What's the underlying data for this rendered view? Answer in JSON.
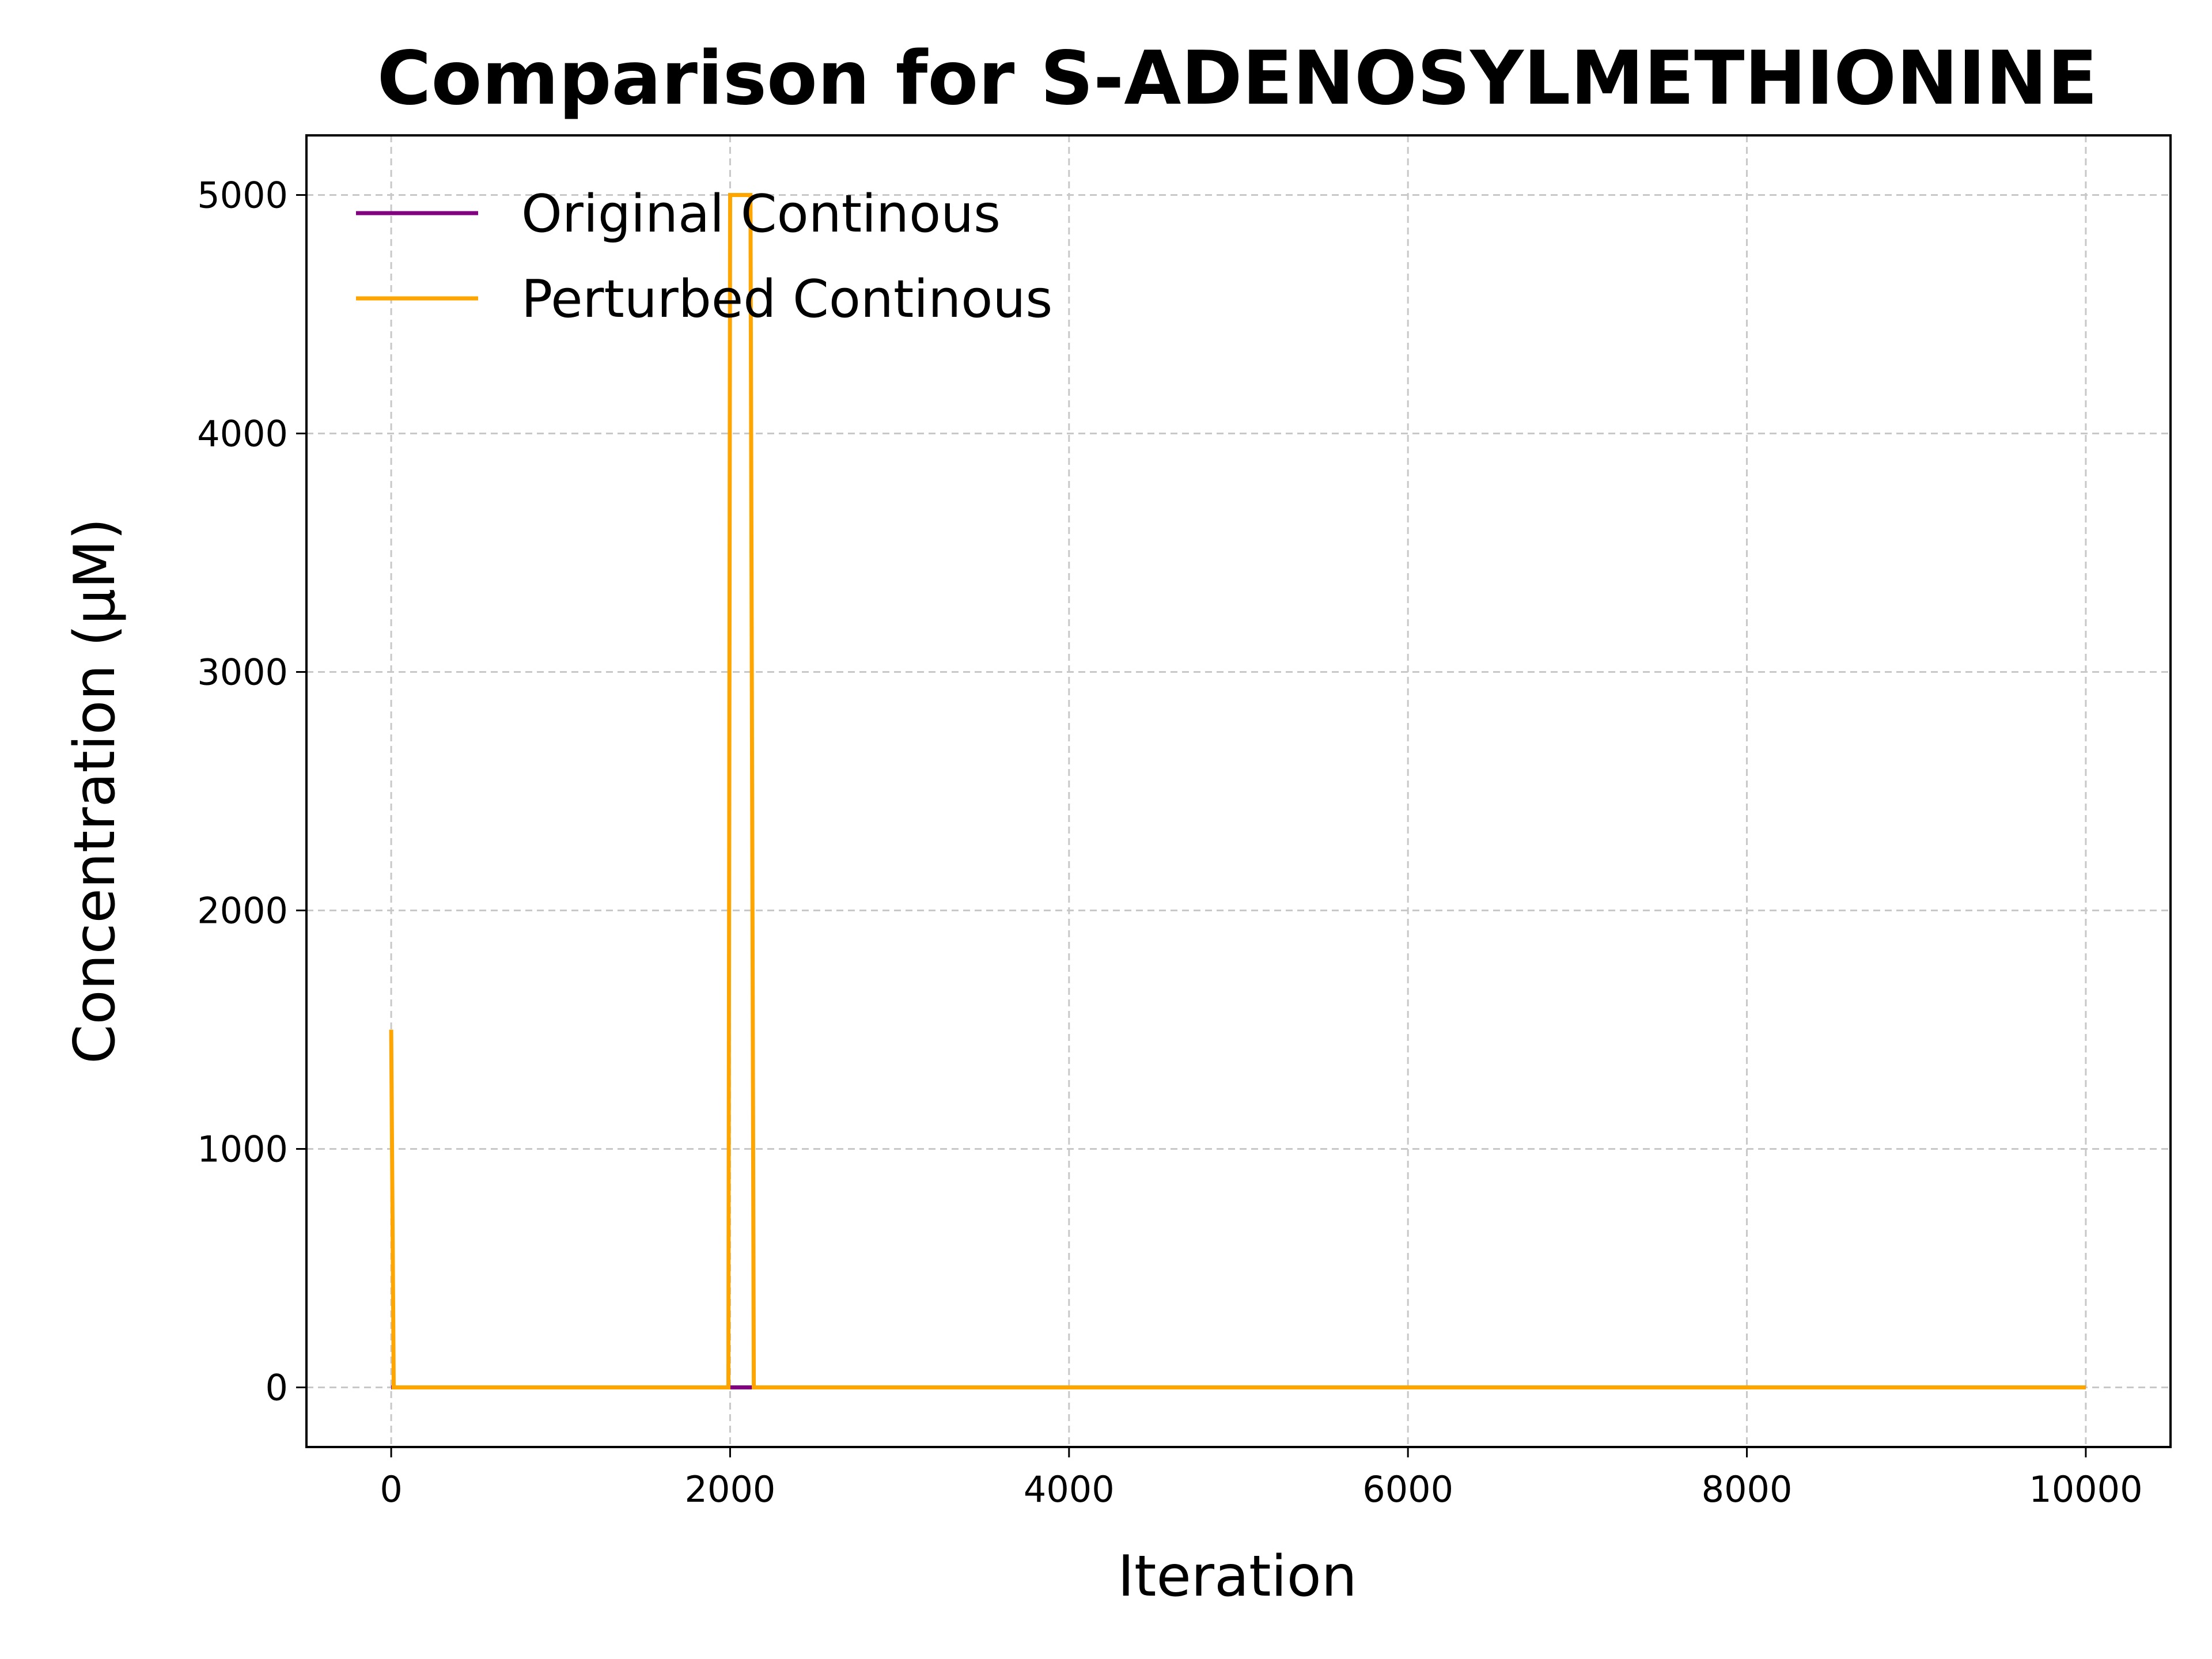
{
  "chart_data": {
    "type": "line",
    "title": "Comparison for S-ADENOSYLMETHIONINE",
    "xlabel": "Iteration",
    "ylabel": "Concentration (μM)",
    "xlim": [
      -500,
      10500
    ],
    "ylim": [
      -250,
      5250
    ],
    "x_ticks": [
      0,
      2000,
      4000,
      6000,
      8000,
      10000
    ],
    "y_ticks": [
      0,
      1000,
      2000,
      3000,
      4000,
      5000
    ],
    "grid": true,
    "legend_position": "upper-left",
    "series": [
      {
        "name": "Original Continous",
        "color": "#800080",
        "points": [
          [
            0,
            0
          ],
          [
            1990,
            0
          ],
          [
            2010,
            0
          ],
          [
            2130,
            0
          ],
          [
            10000,
            0
          ]
        ]
      },
      {
        "name": "Perturbed Continous",
        "color": "#ffa500",
        "points": [
          [
            0,
            1500
          ],
          [
            15,
            0
          ],
          [
            1990,
            0
          ],
          [
            2000,
            5000
          ],
          [
            2120,
            5000
          ],
          [
            2140,
            0
          ],
          [
            10000,
            0
          ]
        ]
      }
    ]
  }
}
